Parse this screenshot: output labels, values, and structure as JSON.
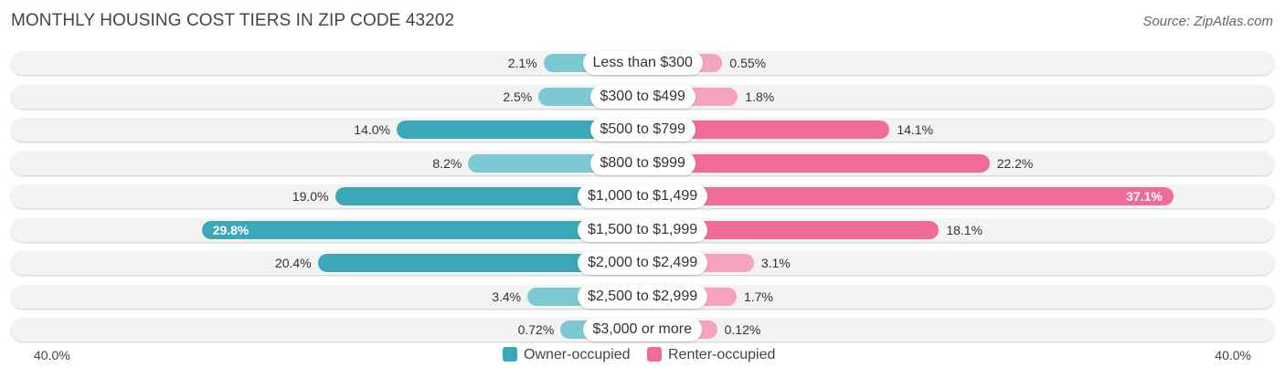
{
  "header": {
    "title": "MONTHLY HOUSING COST TIERS IN ZIP CODE 43202",
    "source": "Source: ZipAtlas.com"
  },
  "colors": {
    "owner": "#3aa8b8",
    "owner_light": "#7cc9d3",
    "renter": "#f06b95",
    "renter_light": "#f6a3bd",
    "row_background": "#f3f3f3"
  },
  "chart_data": {
    "type": "bar",
    "orientation": "horizontal-diverging",
    "title": "MONTHLY HOUSING COST TIERS IN ZIP CODE 43202",
    "categories": [
      "Less than $300",
      "$300 to $499",
      "$500 to $799",
      "$800 to $999",
      "$1,000 to $1,499",
      "$1,500 to $1,999",
      "$2,000 to $2,499",
      "$2,500 to $2,999",
      "$3,000 or more"
    ],
    "series": [
      {
        "name": "Owner-occupied",
        "values": [
          2.1,
          2.5,
          14.0,
          8.2,
          19.0,
          29.8,
          20.4,
          3.4,
          0.72
        ],
        "labels": [
          "2.1%",
          "2.5%",
          "14.0%",
          "8.2%",
          "19.0%",
          "29.8%",
          "20.4%",
          "3.4%",
          "0.72%"
        ]
      },
      {
        "name": "Renter-occupied",
        "values": [
          0.55,
          1.8,
          14.1,
          22.2,
          37.1,
          18.1,
          3.1,
          1.7,
          0.12
        ],
        "labels": [
          "0.55%",
          "1.8%",
          "14.1%",
          "22.2%",
          "37.1%",
          "18.1%",
          "3.1%",
          "1.7%",
          "0.12%"
        ]
      }
    ],
    "axis_min_label": "40.0%",
    "axis_max_label": "40.0%",
    "xlim": [
      -40,
      40
    ],
    "legend_position": "bottom-center",
    "grid": false
  }
}
